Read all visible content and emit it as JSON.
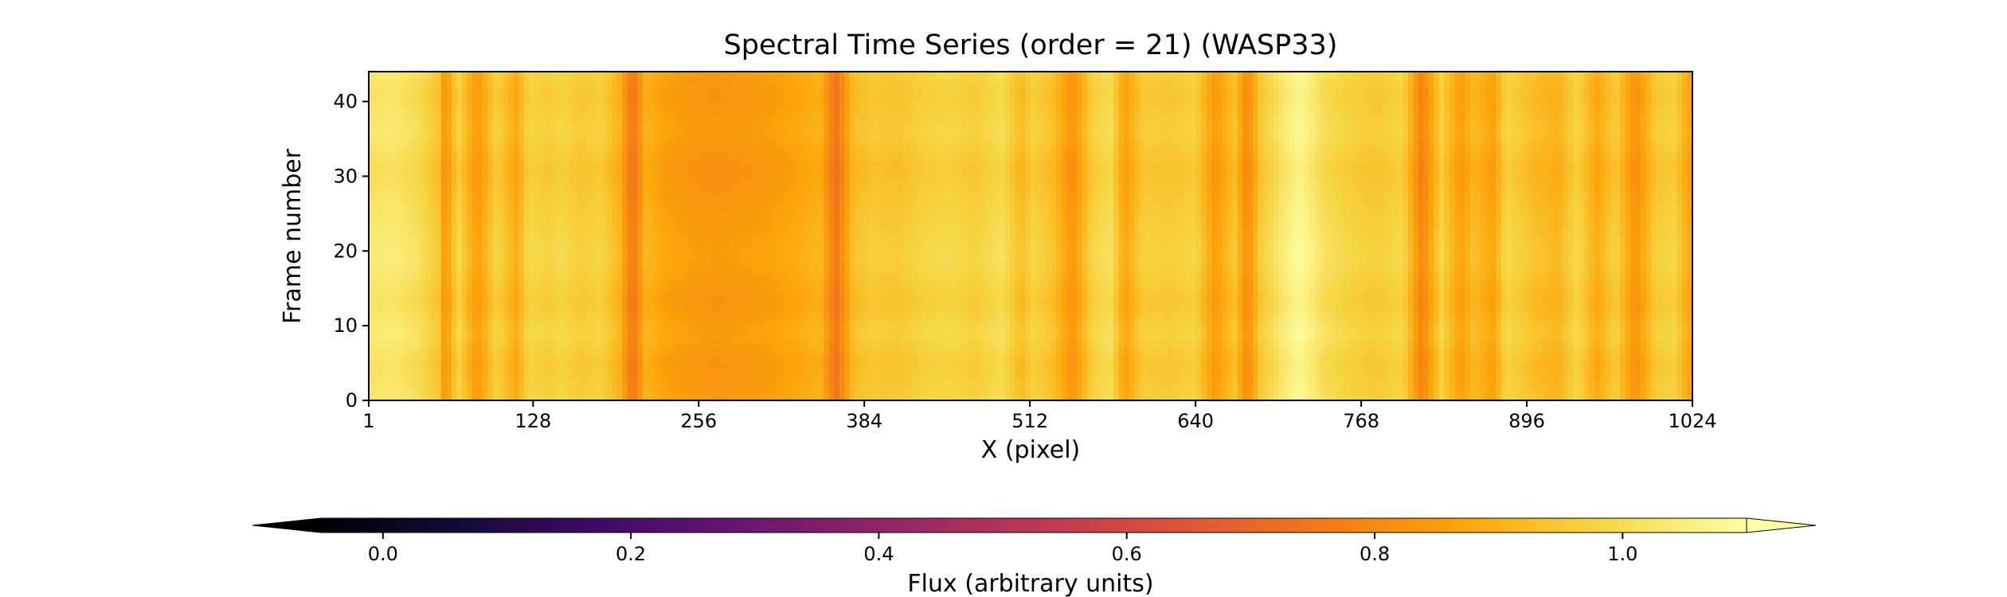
{
  "chart_data": {
    "type": "heatmap",
    "title": "Spectral Time Series (order = 21) (WASP33)",
    "xlabel": "X (pixel)",
    "ylabel": "Frame number",
    "xlim": [
      1,
      1024
    ],
    "ylim": [
      0,
      44
    ],
    "x_ticks": [
      1,
      128,
      256,
      384,
      512,
      640,
      768,
      896,
      1024
    ],
    "y_ticks": [
      0,
      10,
      20,
      30,
      40
    ],
    "colormap": "inferno",
    "colorbar": {
      "label": "Flux (arbitrary units)",
      "range": [
        -0.05,
        1.1
      ],
      "ticks": [
        0.0,
        0.2,
        0.4,
        0.6,
        0.8,
        1.0
      ],
      "tick_labels": [
        "0.0",
        "0.2",
        "0.4",
        "0.6",
        "0.8",
        "1.0"
      ],
      "extend": "both",
      "orientation": "horizontal"
    },
    "column_profile": {
      "x": [
        1,
        20,
        40,
        55,
        60,
        70,
        85,
        100,
        115,
        125,
        140,
        150,
        165,
        180,
        195,
        205,
        215,
        230,
        250,
        270,
        290,
        310,
        330,
        350,
        362,
        375,
        390,
        410,
        430,
        450,
        470,
        490,
        505,
        515,
        530,
        545,
        560,
        575,
        585,
        600,
        620,
        640,
        655,
        670,
        680,
        690,
        705,
        720,
        740,
        760,
        780,
        800,
        815,
        830,
        845,
        855,
        870,
        880,
        900,
        920,
        935,
        950,
        965,
        980,
        995,
        1010,
        1024
      ],
      "flux": [
        1.02,
        1.03,
        1.0,
        0.94,
        0.82,
        0.98,
        0.84,
        0.97,
        0.88,
        0.98,
        0.96,
        0.98,
        0.95,
        0.97,
        0.9,
        0.74,
        0.9,
        0.86,
        0.84,
        0.83,
        0.84,
        0.85,
        0.87,
        0.9,
        0.74,
        0.92,
        0.95,
        0.94,
        0.97,
        0.98,
        0.96,
        1.0,
        0.92,
        0.97,
        0.93,
        0.82,
        0.97,
        1.0,
        0.86,
        0.96,
        0.95,
        0.97,
        0.84,
        0.94,
        0.8,
        0.95,
        1.02,
        1.08,
        1.0,
        0.97,
        0.95,
        0.98,
        0.78,
        0.97,
        0.85,
        0.92,
        0.86,
        0.98,
        0.93,
        0.9,
        0.98,
        0.88,
        0.96,
        0.82,
        0.95,
        0.97,
        0.85
      ]
    },
    "frame_modulation": {
      "frames": [
        0,
        5,
        9,
        13,
        19,
        26,
        31,
        36,
        41,
        44
      ],
      "delta": [
        0.01,
        -0.01,
        0.02,
        -0.01,
        0.02,
        0.0,
        -0.02,
        0.01,
        -0.01,
        0.01
      ]
    },
    "grid": false
  }
}
